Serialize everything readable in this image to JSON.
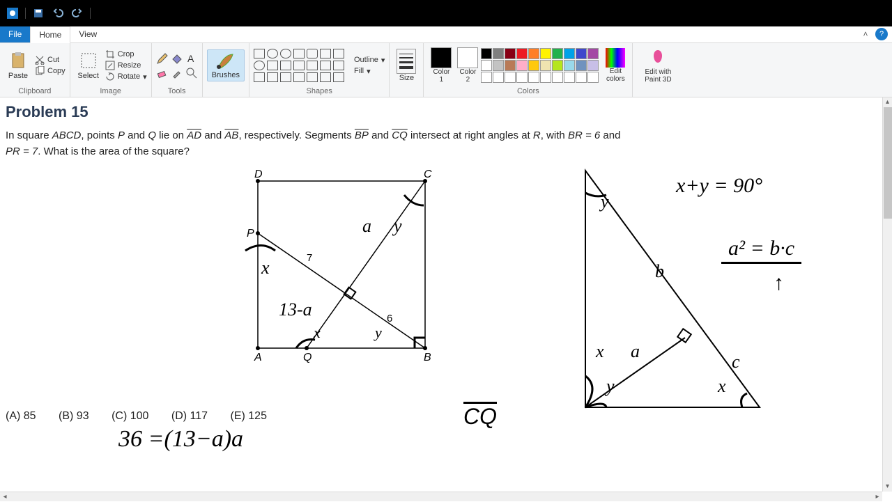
{
  "titlebar": {
    "icons": [
      "paint-logo",
      "save",
      "undo",
      "redo"
    ]
  },
  "menu": {
    "file": "File",
    "home": "Home",
    "view": "View"
  },
  "ribbon": {
    "clipboard": {
      "label": "Clipboard",
      "paste": "Paste",
      "cut": "Cut",
      "copy": "Copy"
    },
    "image": {
      "label": "Image",
      "select": "Select",
      "crop": "Crop",
      "resize": "Resize",
      "rotate": "Rotate"
    },
    "tools": {
      "label": "Tools"
    },
    "brushes": {
      "label": "Brushes"
    },
    "shapes": {
      "label": "Shapes",
      "outline": "Outline",
      "fill": "Fill"
    },
    "size": {
      "label": "Size"
    },
    "color1": {
      "label": "Color\n1",
      "hex": "#000000"
    },
    "color2": {
      "label": "Color\n2",
      "hex": "#ffffff"
    },
    "colors": {
      "label": "Colors",
      "row1": [
        "#000000",
        "#7f7f7f",
        "#880015",
        "#ed1c24",
        "#ff7f27",
        "#fff200",
        "#22b14c",
        "#00a2e8",
        "#3f48cc",
        "#a349a4"
      ],
      "row2": [
        "#ffffff",
        "#c3c3c3",
        "#b97a57",
        "#ffaec9",
        "#ffc90e",
        "#efe4b0",
        "#b5e61d",
        "#99d9ea",
        "#7092be",
        "#c8bfe7"
      ],
      "row3": [
        "#ffffff",
        "#ffffff",
        "#ffffff",
        "#ffffff",
        "#ffffff",
        "#ffffff",
        "#ffffff",
        "#ffffff",
        "#ffffff",
        "#ffffff"
      ]
    },
    "editcolors": "Edit\ncolors",
    "paint3d": "Edit with\nPaint 3D"
  },
  "problem": {
    "title": "Problem 15",
    "line1_a": "In square ",
    "ABCD": "ABCD",
    "line1_b": ", points ",
    "P": "P",
    "line1_c": " and ",
    "Q": "Q",
    "line1_d": " lie on ",
    "AD": "AD",
    "line1_e": " and ",
    "AB": "AB",
    "line1_f": ", respectively. Segments ",
    "BP": "BP",
    "line1_g": " and ",
    "CQ": "CQ",
    "line1_h": " intersect at right angles at ",
    "R": "R",
    "line1_i": ", with ",
    "BR": "BR = 6",
    "line1_j": " and",
    "line2_a": "PR = 7",
    "line2_b": ". What is the area of the square?",
    "answers": {
      "A": "(A) 85",
      "B": "(B) 93",
      "C": "(C) 100",
      "D": "(D) 117",
      "E": "(E) 125"
    },
    "diagram": {
      "labels": {
        "D": "D",
        "C": "C",
        "A": "A",
        "B": "B",
        "P": "P",
        "Q": "Q",
        "seven": "7",
        "six": "6"
      }
    },
    "handwriting": {
      "a": "a",
      "y": "y",
      "x": "x",
      "xy_at_A_x": "x",
      "xy_at_A_y": "y",
      "xy_at_B_y": "y",
      "thirteen_minus_a": "13-a",
      "cq": "CQ",
      "eq1": "36 =(13−a)a",
      "tri_y": "y",
      "tri_b": "b",
      "tri_x": "x",
      "tri_a": "a",
      "tri_c": "c",
      "tri_x2": "x",
      "tri_y2": "y",
      "xyninety": "x+y = 90°",
      "absq": "a² = b·c",
      "arrow_val": "↑"
    }
  }
}
